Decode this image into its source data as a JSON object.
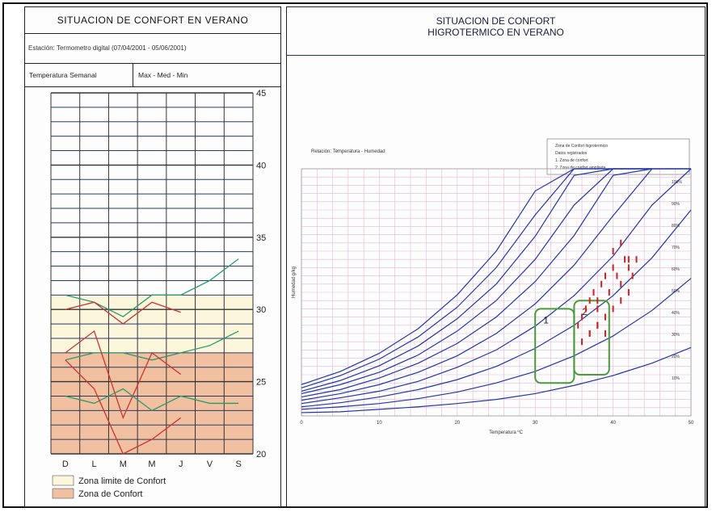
{
  "left": {
    "title": "SITUACION DE CONFORT EN VERANO",
    "station": "Estación: Termometro digital (07/04/2001 - 05/06/2001)",
    "tab_label": "Temperatura Semanal",
    "series_label": "Max - Med - Min",
    "legend": [
      {
        "label": "Zona limite de Confort",
        "color": "#fbf6dc"
      },
      {
        "label": "Zona de Confort",
        "color": "#f0c0a0"
      }
    ]
  },
  "right": {
    "title_line1": "SITUACION DE CONFORT",
    "title_line2": "HIGROTERMICO EN VERANO",
    "chart_note": "Relación: Temperatura - Humedad",
    "legend_lines": [
      "Zona de Confort higrotermico",
      "Datos registrados",
      "1. Zona de confort",
      "2. Zona de confort ampliada"
    ],
    "xlabel": "Temperatura ºC",
    "ylabel": "Humedad g/kg",
    "zone_labels": [
      "1",
      "2"
    ]
  },
  "chart_data": [
    {
      "type": "line",
      "title": "SITUACION DE CONFORT EN VERANO",
      "categories": [
        "D",
        "L",
        "M",
        "M",
        "J",
        "V",
        "S"
      ],
      "ylim": [
        20,
        45
      ],
      "yticks": [
        20,
        25,
        30,
        35,
        40,
        45
      ],
      "bands": [
        {
          "label": "Zona limite de Confort",
          "from": 27,
          "to": 31,
          "color": "#fbf6dc"
        },
        {
          "label": "Zona de Confort",
          "from": 20,
          "to": 27,
          "color": "#f0c0a0"
        }
      ],
      "series": [
        {
          "name": "Max",
          "color": "#2a9a6a",
          "values": [
            31,
            30.5,
            29.5,
            31,
            31,
            32,
            33.5
          ]
        },
        {
          "name": "Max",
          "color": "#cc3333",
          "values": [
            30,
            30.5,
            29,
            30.5,
            29.8,
            null,
            null
          ]
        },
        {
          "name": "Med",
          "color": "#2a9a6a",
          "values": [
            26.5,
            27,
            27,
            26.5,
            27,
            27.5,
            28.5
          ]
        },
        {
          "name": "Med",
          "color": "#cc3333",
          "values": [
            27,
            28.5,
            22.5,
            27,
            25.5,
            null,
            null
          ]
        },
        {
          "name": "Min",
          "color": "#2a9a6a",
          "values": [
            24,
            23.5,
            24.5,
            23,
            24,
            23.5,
            23.5
          ]
        },
        {
          "name": "Min",
          "color": "#cc3333",
          "values": [
            26.5,
            24.5,
            20,
            21,
            22.5,
            null,
            null
          ]
        }
      ],
      "grid": true
    },
    {
      "type": "line",
      "title": "SITUACION DE CONFORT HIGROTERMICO EN VERANO",
      "xlabel": "Temperatura ºC",
      "ylabel": "Humedad g/kg",
      "xlim": [
        0,
        50
      ],
      "xticks": [
        0,
        10,
        20,
        30,
        40,
        50
      ],
      "ylim": [
        0,
        30
      ],
      "curve_labels": [
        "100%",
        "90%",
        "80%",
        "70%",
        "60%",
        "50%",
        "40%",
        "30%",
        "20%",
        "10%"
      ],
      "series": [
        {
          "name": "100%",
          "x": [
            0,
            5,
            10,
            15,
            20,
            25,
            30,
            35,
            40,
            45,
            50
          ],
          "values": [
            3.8,
            5.4,
            7.6,
            10.6,
            14.7,
            20.0,
            27.3,
            30,
            30,
            30,
            30
          ]
        },
        {
          "name": "90%",
          "x": [
            0,
            5,
            10,
            15,
            20,
            25,
            30,
            35,
            40,
            45
          ],
          "values": [
            3.4,
            4.9,
            6.9,
            9.6,
            13.2,
            18.0,
            24.4,
            30,
            30,
            30
          ]
        },
        {
          "name": "80%",
          "x": [
            0,
            5,
            10,
            15,
            20,
            25,
            30,
            35,
            40,
            45
          ],
          "values": [
            3.0,
            4.3,
            6.1,
            8.5,
            11.8,
            16.0,
            21.8,
            29.2,
            30,
            30
          ]
        },
        {
          "name": "70%",
          "x": [
            0,
            5,
            10,
            15,
            20,
            25,
            30,
            35,
            40,
            45
          ],
          "values": [
            2.7,
            3.8,
            5.3,
            7.4,
            10.3,
            14.0,
            19.0,
            25.6,
            30,
            30
          ]
        },
        {
          "name": "60%",
          "x": [
            0,
            5,
            10,
            15,
            20,
            25,
            30,
            35,
            40,
            45,
            50
          ],
          "values": [
            2.3,
            3.2,
            4.6,
            6.4,
            8.8,
            12.0,
            16.3,
            21.9,
            29.2,
            30,
            30
          ]
        },
        {
          "name": "50%",
          "x": [
            0,
            5,
            10,
            15,
            20,
            25,
            30,
            35,
            40,
            45,
            50
          ],
          "values": [
            1.9,
            2.7,
            3.8,
            5.3,
            7.3,
            10.0,
            13.6,
            18.3,
            24.3,
            30,
            30
          ]
        },
        {
          "name": "40%",
          "x": [
            0,
            5,
            10,
            15,
            20,
            25,
            30,
            35,
            40,
            45,
            50
          ],
          "values": [
            1.5,
            2.2,
            3.0,
            4.2,
            5.9,
            8.0,
            10.9,
            14.6,
            19.4,
            25.6,
            30
          ]
        },
        {
          "name": "30%",
          "x": [
            0,
            5,
            10,
            15,
            20,
            25,
            30,
            35,
            40,
            45,
            50
          ],
          "values": [
            1.1,
            1.6,
            2.3,
            3.2,
            4.4,
            6.0,
            8.2,
            11.0,
            14.6,
            19.2,
            25.0
          ]
        },
        {
          "name": "20%",
          "x": [
            0,
            5,
            10,
            15,
            20,
            25,
            30,
            35,
            40,
            45,
            50
          ],
          "values": [
            0.8,
            1.1,
            1.5,
            2.1,
            2.9,
            4.0,
            5.4,
            7.3,
            9.7,
            12.8,
            16.7
          ]
        },
        {
          "name": "10%",
          "x": [
            0,
            5,
            10,
            15,
            20,
            25,
            30,
            35,
            40,
            45,
            50
          ],
          "values": [
            0.4,
            0.5,
            0.8,
            1.1,
            1.5,
            2.0,
            2.7,
            3.7,
            4.9,
            6.4,
            8.3
          ]
        }
      ],
      "zones": [
        {
          "label": "1",
          "x": [
            30,
            35
          ],
          "y": [
            4,
            13
          ]
        },
        {
          "label": "2",
          "x": [
            35,
            39.5
          ],
          "y": [
            5,
            14
          ]
        }
      ],
      "scatter": {
        "color": "#cc2222",
        "x": [
          35.5,
          36,
          36.5,
          37,
          37.5,
          38,
          38.5,
          39,
          39.5,
          40,
          40.5,
          41,
          41.5,
          42,
          42.5,
          43,
          38,
          39,
          40,
          41,
          42,
          37,
          38,
          39,
          36,
          37,
          38,
          40,
          41,
          42
        ],
        "values": [
          11,
          12,
          13,
          14,
          15,
          14,
          16,
          17,
          15,
          18,
          17,
          16,
          19,
          18,
          17,
          19,
          13,
          12,
          13,
          14,
          15,
          10,
          11,
          10,
          9,
          10,
          11,
          20,
          21,
          19
        ]
      },
      "grid": true
    }
  ]
}
